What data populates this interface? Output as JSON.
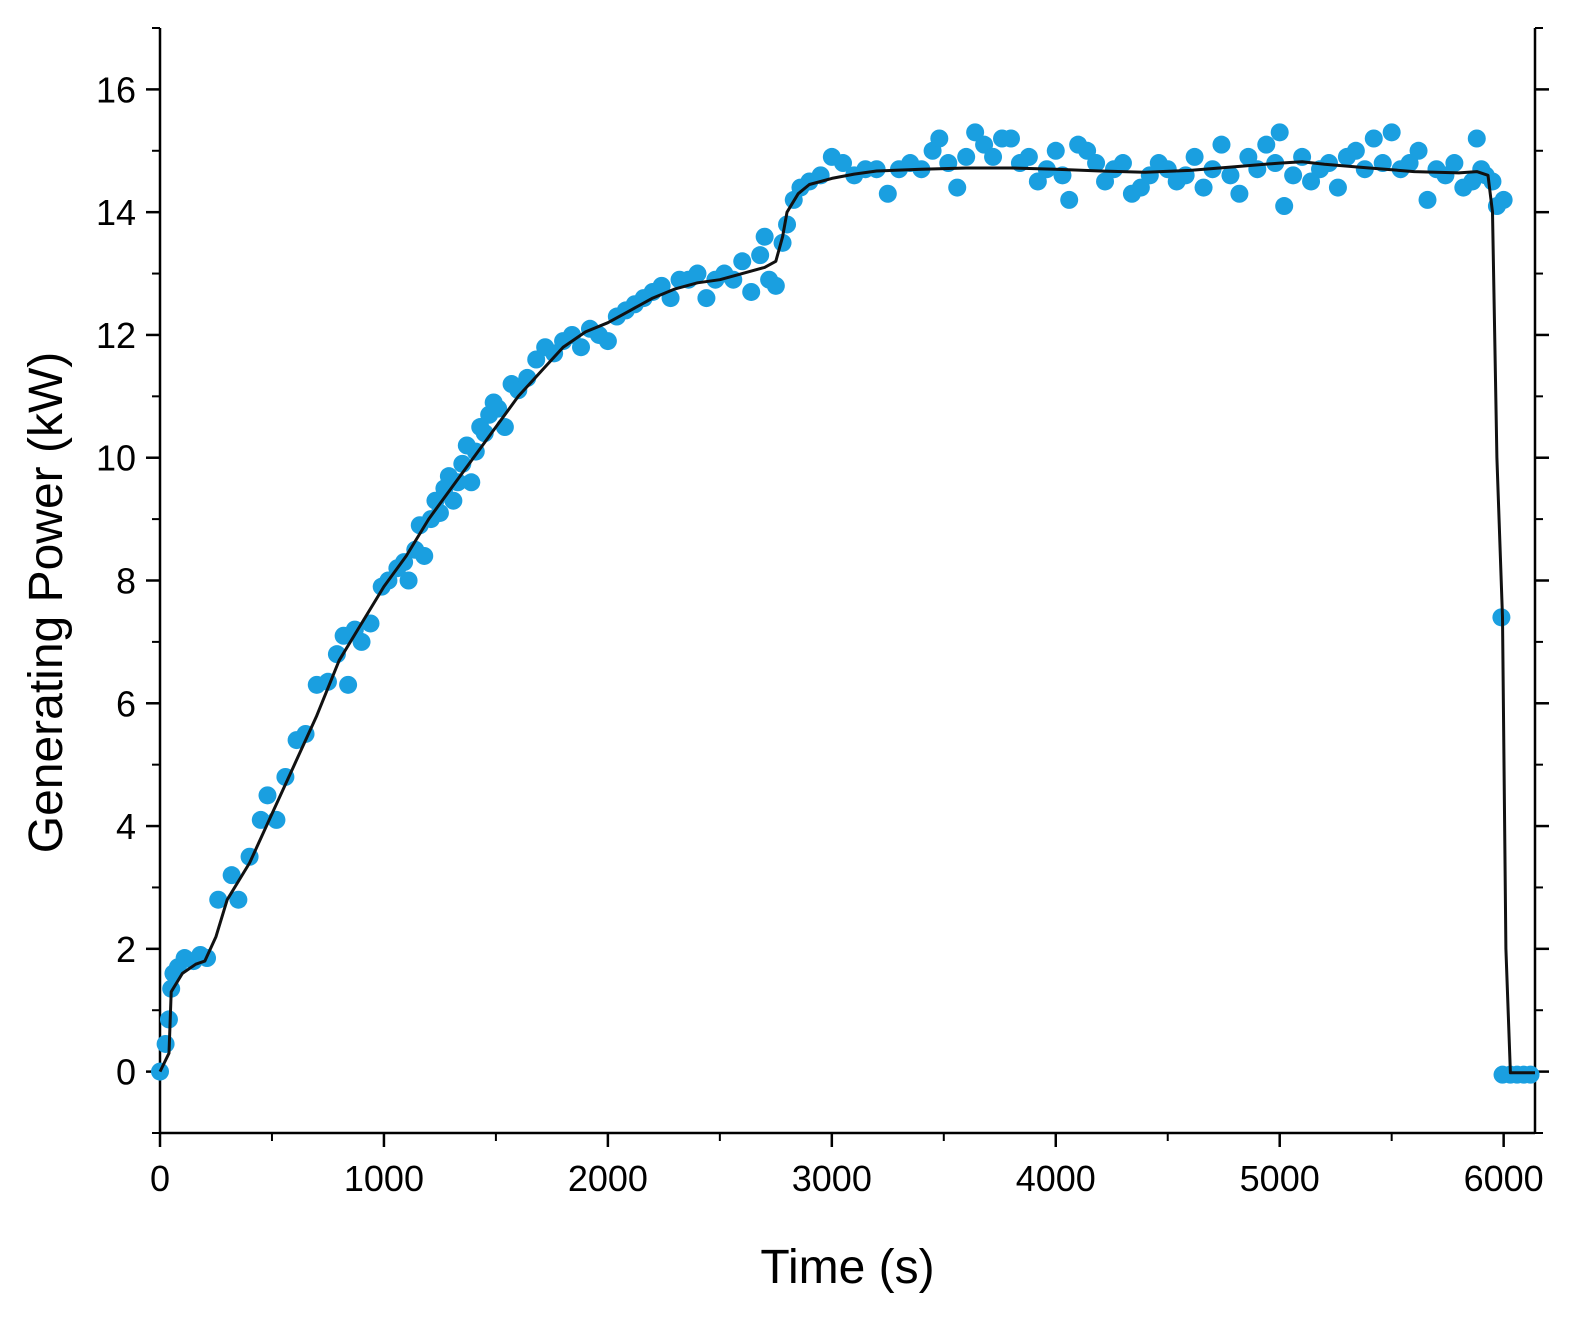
{
  "chart_data": {
    "type": "scatter",
    "xlabel": "Time (s)",
    "ylabel": "Generating Power (kW)",
    "xlim": [
      0,
      6140
    ],
    "ylim": [
      -1,
      17
    ],
    "x_ticks": [
      0,
      1000,
      2000,
      3000,
      4000,
      5000,
      6000
    ],
    "y_ticks": [
      0,
      2,
      4,
      6,
      8,
      10,
      12,
      14,
      16
    ],
    "grid": false,
    "legend": "none",
    "colors": {
      "points": "#1a9fe0",
      "fit": "#111111",
      "axes": "#000000"
    },
    "series": [
      {
        "style": "markers",
        "points": [
          [
            0,
            0
          ],
          [
            25,
            0.45
          ],
          [
            40,
            0.85
          ],
          [
            50,
            1.35
          ],
          [
            60,
            1.6
          ],
          [
            80,
            1.7
          ],
          [
            110,
            1.85
          ],
          [
            150,
            1.8
          ],
          [
            180,
            1.9
          ],
          [
            210,
            1.85
          ],
          [
            260,
            2.8
          ],
          [
            320,
            3.2
          ],
          [
            350,
            2.8
          ],
          [
            400,
            3.5
          ],
          [
            450,
            4.1
          ],
          [
            480,
            4.5
          ],
          [
            520,
            4.1
          ],
          [
            560,
            4.8
          ],
          [
            610,
            5.4
          ],
          [
            650,
            5.5
          ],
          [
            700,
            6.3
          ],
          [
            750,
            6.35
          ],
          [
            790,
            6.8
          ],
          [
            820,
            7.1
          ],
          [
            840,
            6.3
          ],
          [
            870,
            7.2
          ],
          [
            900,
            7.0
          ],
          [
            940,
            7.3
          ],
          [
            990,
            7.9
          ],
          [
            1020,
            8.0
          ],
          [
            1060,
            8.2
          ],
          [
            1090,
            8.3
          ],
          [
            1110,
            8.0
          ],
          [
            1140,
            8.5
          ],
          [
            1160,
            8.9
          ],
          [
            1180,
            8.4
          ],
          [
            1210,
            9.0
          ],
          [
            1230,
            9.3
          ],
          [
            1250,
            9.1
          ],
          [
            1270,
            9.5
          ],
          [
            1290,
            9.7
          ],
          [
            1310,
            9.3
          ],
          [
            1330,
            9.6
          ],
          [
            1350,
            9.9
          ],
          [
            1370,
            10.2
          ],
          [
            1390,
            9.6
          ],
          [
            1410,
            10.1
          ],
          [
            1430,
            10.5
          ],
          [
            1450,
            10.4
          ],
          [
            1470,
            10.7
          ],
          [
            1490,
            10.9
          ],
          [
            1510,
            10.8
          ],
          [
            1540,
            10.5
          ],
          [
            1570,
            11.2
          ],
          [
            1600,
            11.1
          ],
          [
            1640,
            11.3
          ],
          [
            1680,
            11.6
          ],
          [
            1720,
            11.8
          ],
          [
            1760,
            11.7
          ],
          [
            1800,
            11.9
          ],
          [
            1840,
            12.0
          ],
          [
            1880,
            11.8
          ],
          [
            1920,
            12.1
          ],
          [
            1960,
            12.0
          ],
          [
            2000,
            11.9
          ],
          [
            2040,
            12.3
          ],
          [
            2080,
            12.4
          ],
          [
            2120,
            12.5
          ],
          [
            2160,
            12.6
          ],
          [
            2200,
            12.7
          ],
          [
            2240,
            12.8
          ],
          [
            2280,
            12.6
          ],
          [
            2320,
            12.9
          ],
          [
            2360,
            12.9
          ],
          [
            2400,
            13.0
          ],
          [
            2440,
            12.6
          ],
          [
            2480,
            12.9
          ],
          [
            2520,
            13.0
          ],
          [
            2560,
            12.9
          ],
          [
            2600,
            13.2
          ],
          [
            2640,
            12.7
          ],
          [
            2680,
            13.3
          ],
          [
            2700,
            13.6
          ],
          [
            2720,
            12.9
          ],
          [
            2750,
            12.8
          ],
          [
            2780,
            13.5
          ],
          [
            2800,
            13.8
          ],
          [
            2830,
            14.2
          ],
          [
            2860,
            14.4
          ],
          [
            2900,
            14.5
          ],
          [
            2950,
            14.6
          ],
          [
            3000,
            14.9
          ],
          [
            3050,
            14.8
          ],
          [
            3100,
            14.6
          ],
          [
            3150,
            14.7
          ],
          [
            3200,
            14.7
          ],
          [
            3250,
            14.3
          ],
          [
            3300,
            14.7
          ],
          [
            3350,
            14.8
          ],
          [
            3400,
            14.7
          ],
          [
            3450,
            15.0
          ],
          [
            3480,
            15.2
          ],
          [
            3520,
            14.8
          ],
          [
            3560,
            14.4
          ],
          [
            3600,
            14.9
          ],
          [
            3640,
            15.3
          ],
          [
            3680,
            15.1
          ],
          [
            3720,
            14.9
          ],
          [
            3760,
            15.2
          ],
          [
            3800,
            15.2
          ],
          [
            3840,
            14.8
          ],
          [
            3880,
            14.9
          ],
          [
            3920,
            14.5
          ],
          [
            3960,
            14.7
          ],
          [
            4000,
            15.0
          ],
          [
            4030,
            14.6
          ],
          [
            4060,
            14.2
          ],
          [
            4100,
            15.1
          ],
          [
            4140,
            15.0
          ],
          [
            4180,
            14.8
          ],
          [
            4220,
            14.5
          ],
          [
            4260,
            14.7
          ],
          [
            4300,
            14.8
          ],
          [
            4340,
            14.3
          ],
          [
            4380,
            14.4
          ],
          [
            4420,
            14.6
          ],
          [
            4460,
            14.8
          ],
          [
            4500,
            14.7
          ],
          [
            4540,
            14.5
          ],
          [
            4580,
            14.6
          ],
          [
            4620,
            14.9
          ],
          [
            4660,
            14.4
          ],
          [
            4700,
            14.7
          ],
          [
            4740,
            15.1
          ],
          [
            4780,
            14.6
          ],
          [
            4820,
            14.3
          ],
          [
            4860,
            14.9
          ],
          [
            4900,
            14.7
          ],
          [
            4940,
            15.1
          ],
          [
            4980,
            14.8
          ],
          [
            5000,
            15.3
          ],
          [
            5020,
            14.1
          ],
          [
            5060,
            14.6
          ],
          [
            5100,
            14.9
          ],
          [
            5140,
            14.5
          ],
          [
            5180,
            14.7
          ],
          [
            5220,
            14.8
          ],
          [
            5260,
            14.4
          ],
          [
            5300,
            14.9
          ],
          [
            5340,
            15.0
          ],
          [
            5380,
            14.7
          ],
          [
            5420,
            15.2
          ],
          [
            5460,
            14.8
          ],
          [
            5500,
            15.3
          ],
          [
            5540,
            14.7
          ],
          [
            5580,
            14.8
          ],
          [
            5620,
            15.0
          ],
          [
            5660,
            14.2
          ],
          [
            5700,
            14.7
          ],
          [
            5740,
            14.6
          ],
          [
            5780,
            14.8
          ],
          [
            5820,
            14.4
          ],
          [
            5860,
            14.5
          ],
          [
            5880,
            15.2
          ],
          [
            5900,
            14.7
          ],
          [
            5920,
            14.6
          ],
          [
            5950,
            14.5
          ],
          [
            5970,
            14.1
          ],
          [
            6000,
            14.2
          ],
          [
            5990,
            7.4
          ],
          [
            5995,
            -0.05
          ],
          [
            6030,
            -0.05
          ],
          [
            6060,
            -0.05
          ],
          [
            6090,
            -0.05
          ],
          [
            6120,
            -0.05
          ]
        ]
      },
      {
        "style": "line",
        "points": [
          [
            0,
            0
          ],
          [
            40,
            0.3
          ],
          [
            50,
            1.3
          ],
          [
            100,
            1.6
          ],
          [
            160,
            1.75
          ],
          [
            200,
            1.8
          ],
          [
            250,
            2.2
          ],
          [
            300,
            2.8
          ],
          [
            400,
            3.4
          ],
          [
            500,
            4.2
          ],
          [
            600,
            5.0
          ],
          [
            700,
            5.8
          ],
          [
            800,
            6.7
          ],
          [
            900,
            7.3
          ],
          [
            1000,
            7.9
          ],
          [
            1100,
            8.4
          ],
          [
            1200,
            9.0
          ],
          [
            1300,
            9.5
          ],
          [
            1400,
            10.0
          ],
          [
            1500,
            10.5
          ],
          [
            1600,
            11.0
          ],
          [
            1700,
            11.4
          ],
          [
            1800,
            11.8
          ],
          [
            1900,
            12.05
          ],
          [
            2000,
            12.2
          ],
          [
            2100,
            12.4
          ],
          [
            2200,
            12.6
          ],
          [
            2300,
            12.75
          ],
          [
            2400,
            12.85
          ],
          [
            2500,
            12.9
          ],
          [
            2600,
            13.0
          ],
          [
            2700,
            13.1
          ],
          [
            2750,
            13.2
          ],
          [
            2780,
            13.6
          ],
          [
            2800,
            14.0
          ],
          [
            2850,
            14.3
          ],
          [
            2900,
            14.45
          ],
          [
            3000,
            14.55
          ],
          [
            3100,
            14.62
          ],
          [
            3200,
            14.67
          ],
          [
            3400,
            14.7
          ],
          [
            3600,
            14.72
          ],
          [
            3800,
            14.72
          ],
          [
            4000,
            14.7
          ],
          [
            4200,
            14.67
          ],
          [
            4400,
            14.65
          ],
          [
            4600,
            14.68
          ],
          [
            4800,
            14.74
          ],
          [
            5000,
            14.8
          ],
          [
            5100,
            14.82
          ],
          [
            5200,
            14.78
          ],
          [
            5400,
            14.72
          ],
          [
            5600,
            14.66
          ],
          [
            5800,
            14.64
          ],
          [
            5880,
            14.66
          ],
          [
            5930,
            14.6
          ],
          [
            5950,
            14.0
          ],
          [
            5970,
            10.0
          ],
          [
            5995,
            7.4
          ],
          [
            6010,
            2.0
          ],
          [
            6030,
            -0.02
          ],
          [
            6140,
            -0.02
          ]
        ]
      }
    ]
  }
}
